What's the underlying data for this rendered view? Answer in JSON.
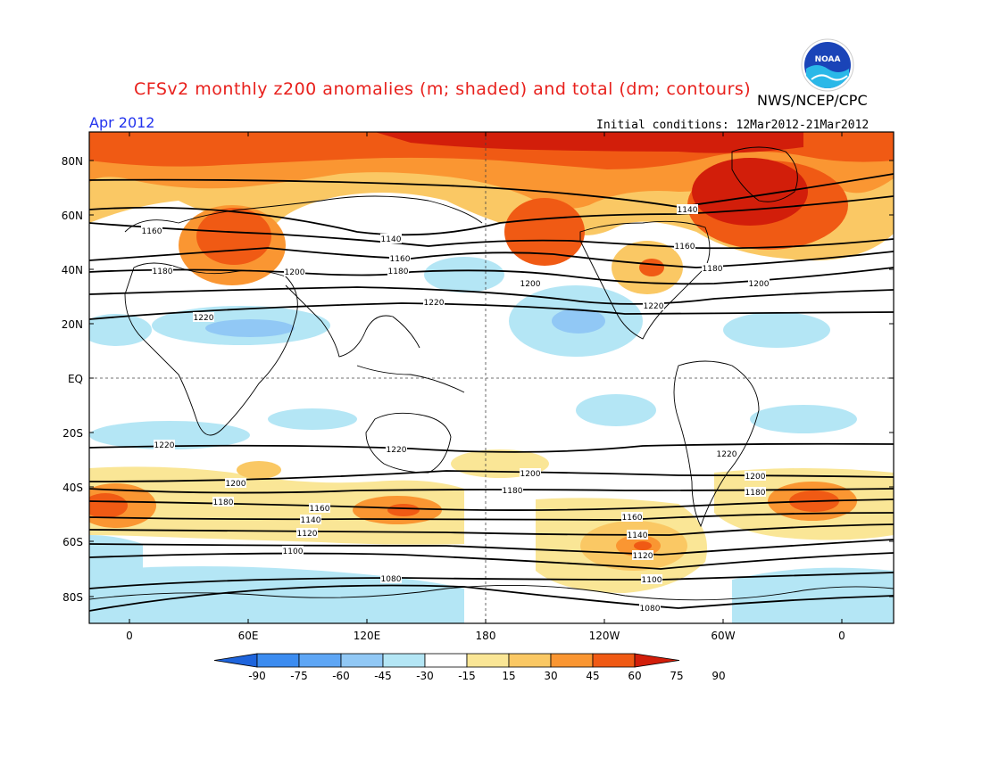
{
  "header": {
    "title": "CFSv2 monthly z200 anomalies (m; shaded) and total (dm; contours)",
    "agency": "NWS/NCEP/CPC",
    "period": "Apr 2012",
    "initial_conditions": "Initial conditions: 12Mar2012-21Mar2012",
    "logo_text": "NOAA",
    "logo_icon": "noaa-logo-icon"
  },
  "map": {
    "lat_ticks": [
      "80N",
      "60N",
      "40N",
      "20N",
      "EQ",
      "20S",
      "40S",
      "60S",
      "80S"
    ],
    "lon_ticks": [
      "0",
      "60E",
      "120E",
      "180",
      "120W",
      "60W",
      "0"
    ],
    "contour_labels": {
      "c1080": "1080",
      "c1100": "1100",
      "c1120": "1120",
      "c1140": "1140",
      "c1160": "1160",
      "c1180": "1180",
      "c1200": "1200",
      "c1220": "1220"
    }
  },
  "colorbar": {
    "labels": [
      "-90",
      "-75",
      "-60",
      "-45",
      "-30",
      "-15",
      "15",
      "30",
      "45",
      "60",
      "75",
      "90"
    ],
    "colors": [
      "#1e64dc",
      "#3c8cf0",
      "#5ea6f5",
      "#91c8f5",
      "#b4e6f5",
      "#ffffff",
      "#fae696",
      "#fac864",
      "#fa9632",
      "#f05a14",
      "#d21e0a"
    ]
  }
}
